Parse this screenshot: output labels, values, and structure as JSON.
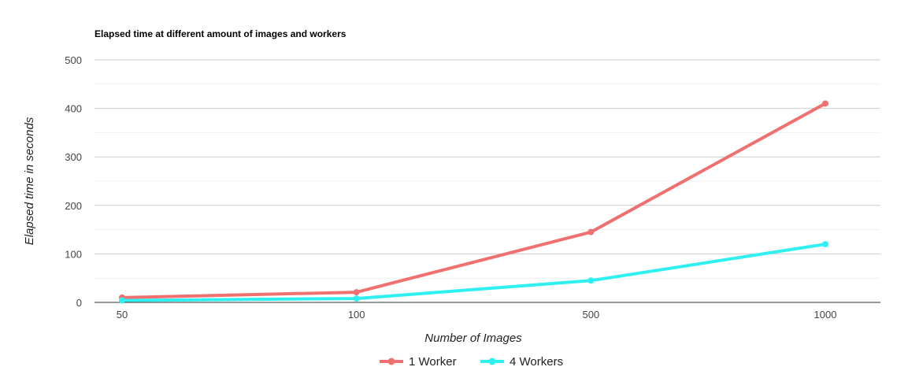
{
  "chart_data": {
    "type": "line",
    "title": "Elapsed time at different amount of images and workers",
    "xlabel": "Number of Images",
    "ylabel": "Elapsed time in seconds",
    "categories": [
      "50",
      "100",
      "500",
      "1000"
    ],
    "ylim": [
      0,
      500
    ],
    "yticks": [
      "0",
      "100",
      "200",
      "300",
      "400",
      "500"
    ],
    "grid": true,
    "legend_position": "bottom",
    "series": [
      {
        "name": "1 Worker",
        "color": "#f07070",
        "values": [
          10,
          21,
          145,
          410
        ]
      },
      {
        "name": "4 Workers",
        "color": "#2ef0f0",
        "values": [
          4,
          8,
          45,
          120
        ]
      }
    ]
  }
}
